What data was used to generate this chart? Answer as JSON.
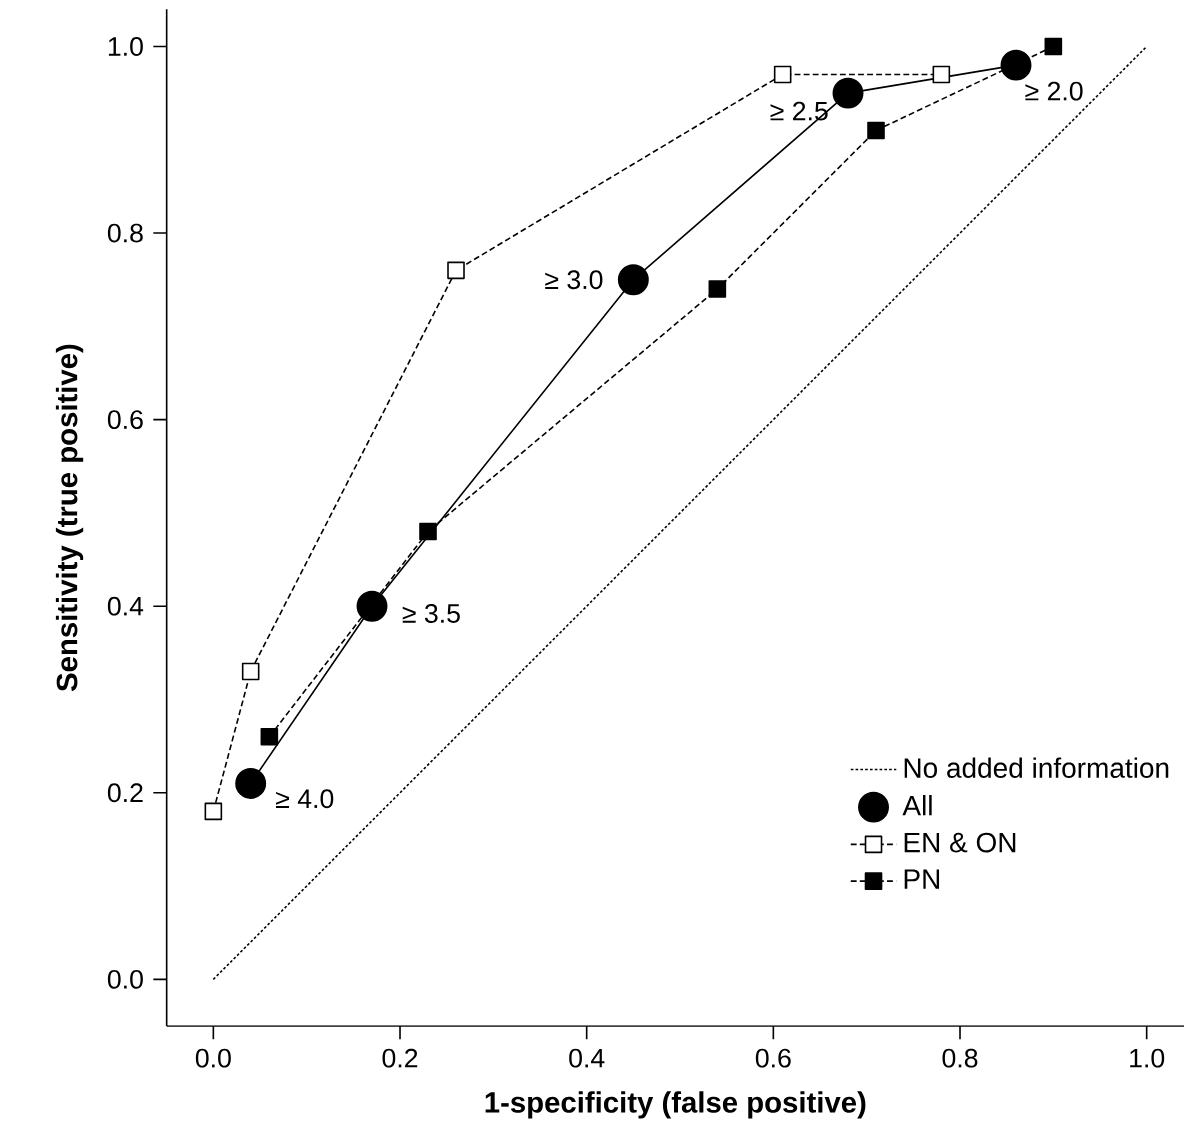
{
  "chart_data": {
    "type": "line",
    "xlabel": "1-specificity (false positive)",
    "ylabel": "Sensitivity (true positive)",
    "xlim": [
      -0.05,
      1.04
    ],
    "ylim": [
      -0.05,
      1.04
    ],
    "xticks": [
      {
        "value": 0,
        "label": "0.0"
      },
      0.2,
      0.4,
      0.6,
      0.8,
      {
        "value": 1,
        "label": "1.0"
      }
    ],
    "yticks": [
      {
        "value": 0,
        "label": "0.0"
      },
      0.2,
      0.4,
      0.6,
      0.8,
      {
        "value": 1,
        "label": "1.0"
      }
    ],
    "grid": false,
    "legend": "bottom right",
    "series": [
      {
        "name": "No added information",
        "color": "#000000",
        "x": [
          0,
          1
        ],
        "values": [
          0,
          1
        ],
        "marker": "none",
        "line_style": "dotted"
      },
      {
        "name": "All",
        "color": "#000000",
        "x": [
          0.04,
          0.17,
          0.45,
          0.68,
          0.86
        ],
        "values": [
          0.21,
          0.4,
          0.75,
          0.95,
          0.98
        ],
        "marker": "circle",
        "line_style": "solid"
      },
      {
        "name": "EN & ON",
        "color": "#ffffff",
        "x": [
          0.0,
          0.04,
          0.26,
          0.61,
          0.78
        ],
        "values": [
          0.18,
          0.33,
          0.76,
          0.97,
          0.97
        ],
        "marker": "square",
        "line_style": "dashed"
      },
      {
        "name": "PN",
        "color": "#000000",
        "x": [
          0.06,
          0.23,
          0.54,
          0.71,
          0.9
        ],
        "values": [
          0.26,
          0.48,
          0.74,
          0.91,
          1.0
        ],
        "marker": "square",
        "line_style": "dashed"
      }
    ],
    "annotations": [
      {
        "text": "≥ 4.0",
        "x": 0.04,
        "y": 0.21
      },
      {
        "text": "≥ 3.5",
        "x": 0.17,
        "y": 0.4
      },
      {
        "text": "≥ 3.0",
        "x": 0.45,
        "y": 0.75
      },
      {
        "text": "≥ 2.5",
        "x": 0.68,
        "y": 0.95
      },
      {
        "text": "≥ 2.0",
        "x": 0.86,
        "y": 0.98
      }
    ]
  }
}
